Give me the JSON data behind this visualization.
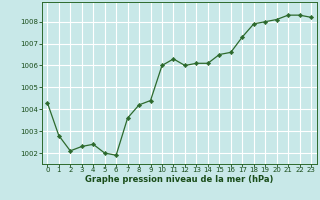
{
  "x": [
    0,
    1,
    2,
    3,
    4,
    5,
    6,
    7,
    8,
    9,
    10,
    11,
    12,
    13,
    14,
    15,
    16,
    17,
    18,
    19,
    20,
    21,
    22,
    23
  ],
  "y": [
    1004.3,
    1002.8,
    1002.1,
    1002.3,
    1002.4,
    1002.0,
    1001.9,
    1003.6,
    1004.2,
    1004.4,
    1006.0,
    1006.3,
    1006.0,
    1006.1,
    1006.1,
    1006.5,
    1006.6,
    1007.3,
    1007.9,
    1008.0,
    1008.1,
    1008.3,
    1008.3,
    1008.2
  ],
  "line_color": "#2d6a2d",
  "marker": "D",
  "marker_size": 2.2,
  "bg_color": "#c8e8e8",
  "grid_color": "#ffffff",
  "xlabel": "Graphe pression niveau de la mer (hPa)",
  "xlabel_color": "#1a4d1a",
  "tick_color": "#1a4d1a",
  "ylim": [
    1001.5,
    1008.9
  ],
  "yticks": [
    1002,
    1003,
    1004,
    1005,
    1006,
    1007,
    1008
  ],
  "xlim": [
    -0.5,
    23.5
  ],
  "xticks": [
    0,
    1,
    2,
    3,
    4,
    5,
    6,
    7,
    8,
    9,
    10,
    11,
    12,
    13,
    14,
    15,
    16,
    17,
    18,
    19,
    20,
    21,
    22,
    23
  ],
  "tick_fontsize": 5.0,
  "xlabel_fontsize": 6.0
}
